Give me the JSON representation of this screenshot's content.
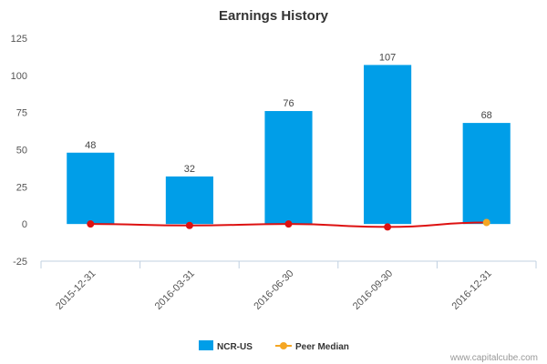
{
  "chart_data": {
    "type": "bar",
    "title": "Earnings History",
    "xlabel": "",
    "ylabel": "",
    "categories": [
      "2015-12-31",
      "2016-03-31",
      "2016-06-30",
      "2016-09-30",
      "2016-12-31"
    ],
    "ylim": [
      -25,
      125
    ],
    "yticks": [
      125,
      100,
      75,
      50,
      25,
      0,
      -25
    ],
    "grid": false,
    "legend_position": "bottom",
    "series": [
      {
        "name": "NCR-US",
        "kind": "bar",
        "color": "#009ee8",
        "values": [
          48,
          32,
          76,
          107,
          68
        ],
        "labels": [
          "48",
          "32",
          "76",
          "107",
          "68"
        ]
      },
      {
        "name": "Peer Median",
        "kind": "line",
        "color": "#dd1111",
        "legend_color": "#f5a623",
        "values": [
          0,
          -1,
          0,
          -2,
          1
        ],
        "point_colors": [
          "#dd1111",
          "#dd1111",
          "#dd1111",
          "#dd1111",
          "#f5a623"
        ]
      }
    ]
  },
  "footer": {
    "watermark": "www.capitalcube.com"
  }
}
